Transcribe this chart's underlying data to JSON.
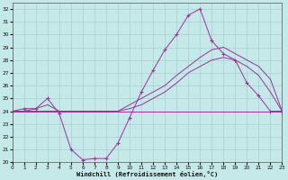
{
  "xlabel": "Windchill (Refroidissement éolien,°C)",
  "background_color": "#c5e8e8",
  "grid_color": "#a8d0d0",
  "line_color": "#993399",
  "xlim": [
    0,
    23
  ],
  "ylim": [
    20,
    32.5
  ],
  "xticks": [
    0,
    1,
    2,
    3,
    4,
    5,
    6,
    7,
    8,
    9,
    10,
    11,
    12,
    13,
    14,
    15,
    16,
    17,
    18,
    19,
    20,
    21,
    22,
    23
  ],
  "yticks": [
    20,
    21,
    22,
    23,
    24,
    25,
    26,
    27,
    28,
    29,
    30,
    31,
    32
  ],
  "temp_curve": [
    24.0,
    24.2,
    24.2,
    25.0,
    23.8,
    21.0,
    20.2,
    20.3,
    20.3,
    21.5,
    23.5,
    25.5,
    27.2,
    28.8,
    30.0,
    31.5,
    32.0,
    29.5,
    28.5,
    28.0,
    26.2,
    25.2,
    24.0,
    24.0
  ],
  "rising_high": [
    24.0,
    24.0,
    24.2,
    24.5,
    24.0,
    24.0,
    24.0,
    24.0,
    24.0,
    24.0,
    24.5,
    25.0,
    25.5,
    26.0,
    26.8,
    27.5,
    28.2,
    28.8,
    29.0,
    28.5,
    28.0,
    27.5,
    26.5,
    24.0
  ],
  "rising_low": [
    24.0,
    24.0,
    24.0,
    24.0,
    24.0,
    24.0,
    24.0,
    24.0,
    24.0,
    24.0,
    24.2,
    24.5,
    25.0,
    25.5,
    26.2,
    27.0,
    27.5,
    28.0,
    28.2,
    28.0,
    27.5,
    26.8,
    25.5,
    24.0
  ],
  "flat_line": [
    24.0,
    24.0,
    24.0,
    24.0,
    24.0,
    24.0,
    24.0,
    24.0,
    24.0,
    24.0,
    24.0,
    24.0,
    24.0,
    24.0,
    24.0,
    24.0,
    24.0,
    24.0,
    24.0,
    24.0,
    24.0,
    24.0,
    24.0,
    24.0
  ]
}
